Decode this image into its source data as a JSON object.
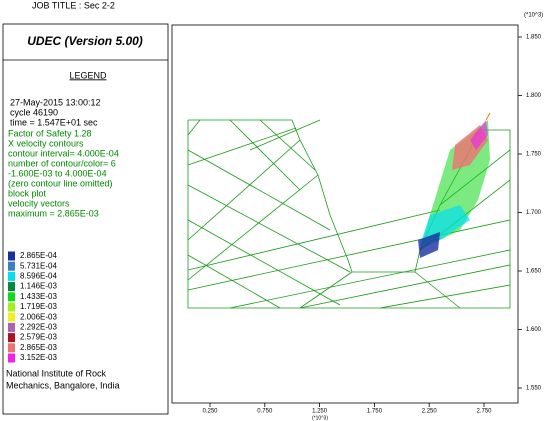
{
  "header": {
    "title": "JOB TITLE : Sec 2-2",
    "program": "UDEC (Version 5.00)"
  },
  "legend": {
    "heading": "LEGEND",
    "info": [
      "27-May-2015 13:00:12",
      "cycle    46190",
      "time  = 1.547E+01 sec"
    ],
    "settings": [
      "Factor of Safety  1.28",
      "X velocity contours",
      "contour interval= 4.000E-04",
      "number of contour/color= 6",
      "-1.600E-03 to  4.000E-04",
      "(zero contour line omitted)",
      "block plot",
      "velocity vectors",
      "  maximum =   2.865E-03"
    ],
    "items": [
      {
        "label": "2.865E-04",
        "color": "#1a2fa0"
      },
      {
        "label": "5.731E-04",
        "color": "#3a7fc0"
      },
      {
        "label": "8.596E-04",
        "color": "#00e0f0"
      },
      {
        "label": "1.146E-03",
        "color": "#008a3a"
      },
      {
        "label": "1.433E-03",
        "color": "#11d81a"
      },
      {
        "label": "1.719E-03",
        "color": "#a0f020"
      },
      {
        "label": "2.006E-03",
        "color": "#f0f020"
      },
      {
        "label": "2.292E-03",
        "color": "#b060b0"
      },
      {
        "label": "2.579E-03",
        "color": "#b01020"
      },
      {
        "label": "2.865E-03",
        "color": "#f07070"
      },
      {
        "label": "3.152E-03",
        "color": "#f020f0"
      }
    ],
    "footer": [
      "National Institute of Rock",
      "Mechanics, Bangalore, India"
    ]
  },
  "axes": {
    "y_multiplier": "(*10^3)",
    "x_multiplier": "(*10^3)",
    "yticks": [
      "1.850",
      "1.800",
      "1.750",
      "1.700",
      "1.650",
      "1.600",
      "1.550"
    ],
    "xticks": [
      "0.250",
      "0.750",
      "1.250",
      "1.750",
      "2.250",
      "2.750"
    ]
  }
}
